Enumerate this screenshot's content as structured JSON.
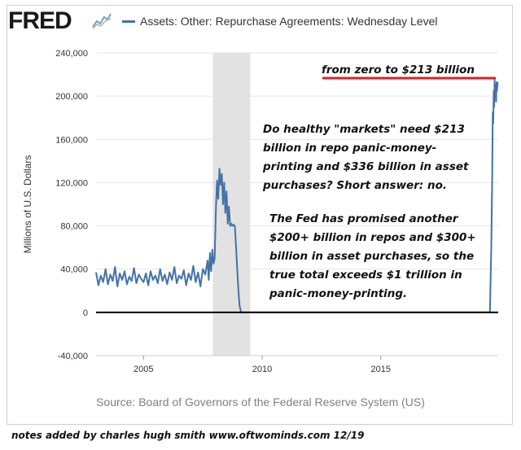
{
  "header": {
    "logo_text": "FRED",
    "logo_icon": "line-chart-icon",
    "series_title": "Assets: Other: Repurchase Agreements: Wednesday Level",
    "series_color": "#4572a7"
  },
  "chart_data": {
    "type": "line",
    "title": "Assets: Other: Repurchase Agreements: Wednesday Level",
    "ylabel": "Millions of U.S. Dollars",
    "xlabel": "",
    "ylim": [
      -40000,
      240000
    ],
    "xlim": [
      2003.0,
      2019.95
    ],
    "yticks": [
      -40000,
      0,
      40000,
      80000,
      120000,
      160000,
      200000,
      240000
    ],
    "ytick_labels": [
      "-40,000",
      "0",
      "40,000",
      "80,000",
      "120,000",
      "160,000",
      "200,000",
      "240,000"
    ],
    "xticks": [
      2005,
      2010,
      2015
    ],
    "xtick_labels": [
      "2005",
      "2010",
      "2015"
    ],
    "grid": "horizontal",
    "recession_shading": [
      2007.92,
      2009.5
    ],
    "recession_color": "#e2e2e2",
    "series": [
      {
        "color": "#4572a7",
        "x": [
          2003.0,
          2003.1,
          2003.2,
          2003.3,
          2003.4,
          2003.5,
          2003.6,
          2003.7,
          2003.8,
          2003.9,
          2004.0,
          2004.1,
          2004.2,
          2004.3,
          2004.4,
          2004.5,
          2004.6,
          2004.7,
          2004.8,
          2004.9,
          2005.0,
          2005.1,
          2005.2,
          2005.3,
          2005.4,
          2005.5,
          2005.6,
          2005.7,
          2005.8,
          2005.9,
          2006.0,
          2006.1,
          2006.2,
          2006.3,
          2006.4,
          2006.5,
          2006.6,
          2006.7,
          2006.8,
          2006.9,
          2007.0,
          2007.1,
          2007.2,
          2007.3,
          2007.4,
          2007.5,
          2007.6,
          2007.7,
          2007.75,
          2007.8,
          2007.85,
          2007.9,
          2007.95,
          2008.0,
          2008.05,
          2008.1,
          2008.15,
          2008.2,
          2008.25,
          2008.3,
          2008.35,
          2008.4,
          2008.45,
          2008.5,
          2008.55,
          2008.6,
          2008.65,
          2008.7,
          2008.75,
          2008.8,
          2008.85,
          2008.9,
          2008.95,
          2009.0,
          2009.05,
          2009.1,
          2009.15,
          2009.25,
          2009.4,
          2010.0,
          2011.0,
          2012.0,
          2013.0,
          2014.0,
          2015.0,
          2016.0,
          2017.0,
          2018.0,
          2019.0,
          2019.6,
          2019.66,
          2019.7,
          2019.72,
          2019.74,
          2019.76,
          2019.78,
          2019.8,
          2019.82,
          2019.84,
          2019.86,
          2019.88,
          2019.9,
          2019.93
        ],
        "values": [
          37000,
          25000,
          34000,
          28000,
          40000,
          26000,
          35000,
          29000,
          42000,
          24000,
          36000,
          30000,
          38000,
          26000,
          33000,
          29000,
          41000,
          27000,
          35000,
          31000,
          28000,
          36000,
          25000,
          38000,
          30000,
          34000,
          27000,
          40000,
          29000,
          35000,
          26000,
          37000,
          30000,
          42000,
          27000,
          34000,
          31000,
          39000,
          25000,
          36000,
          30000,
          43000,
          28000,
          37000,
          24000,
          40000,
          35000,
          48000,
          30000,
          55000,
          38000,
          58000,
          45000,
          50000,
          95000,
          122000,
          105000,
          133000,
          118000,
          128000,
          100000,
          120000,
          92000,
          112000,
          82000,
          98000,
          80000,
          82000,
          80000,
          81000,
          80000,
          60000,
          40000,
          20000,
          6000,
          1000,
          0,
          0,
          0,
          0,
          0,
          0,
          0,
          0,
          0,
          0,
          0,
          0,
          0,
          0,
          60000,
          130000,
          185000,
          175000,
          205000,
          190000,
          215000,
          200000,
          210000,
          195000,
          213000,
          205000,
          213000
        ]
      }
    ],
    "annotations": [
      {
        "id": "headline",
        "text": "from zero to $213 billion"
      },
      {
        "id": "question",
        "lines": [
          "Do healthy \"markets\" need $213",
          "billion in repo panic-money-",
          "printing and $336 billion in asset",
          "purchases? Short answer: no."
        ]
      },
      {
        "id": "promise",
        "lines": [
          "The Fed has promised another",
          "$200+ billion in repos and $300+",
          "billion in asset purchases, so the",
          "true total exceeds $1 trillion in",
          "panic-money-printing."
        ]
      }
    ],
    "annotation_line_color": "#d8232a",
    "zero_line_color": "#000000"
  },
  "source_text": "Source: Board of Governors of the Federal Reserve System (US)",
  "footer_text": "notes added by charles hugh smith    www.oftwominds.com  12/19"
}
